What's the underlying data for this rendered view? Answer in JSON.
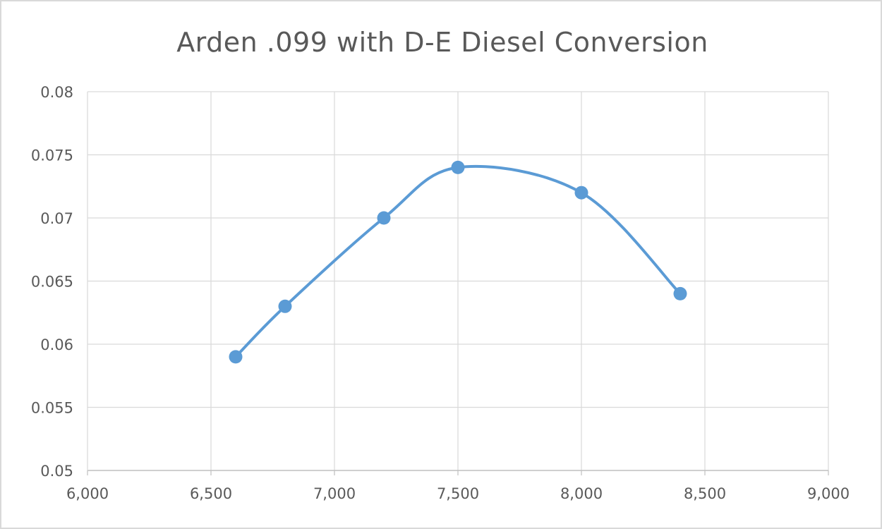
{
  "chart_data": {
    "type": "scatter",
    "smooth_lines": true,
    "title": "Arden .099 with D-E Diesel Conversion",
    "xlabel": "",
    "ylabel": "",
    "xlim": [
      6000,
      9000
    ],
    "ylim": [
      0.05,
      0.08
    ],
    "x_ticks": [
      6000,
      6500,
      7000,
      7500,
      8000,
      8500,
      9000
    ],
    "x_tick_labels": [
      "6,000",
      "6,500",
      "7,000",
      "7,500",
      "8,000",
      "8,500",
      "9,000"
    ],
    "y_ticks": [
      0.05,
      0.055,
      0.06,
      0.065,
      0.07,
      0.075,
      0.08
    ],
    "y_tick_labels": [
      "0.05",
      "0.055",
      "0.06",
      "0.065",
      "0.07",
      "0.075",
      "0.08"
    ],
    "grid": true,
    "legend": "none",
    "series": [
      {
        "color": "#5b9bd5",
        "x": [
          6600,
          6800,
          7200,
          7500,
          8000,
          8400
        ],
        "y": [
          0.059,
          0.063,
          0.07,
          0.074,
          0.072,
          0.064
        ]
      }
    ]
  }
}
